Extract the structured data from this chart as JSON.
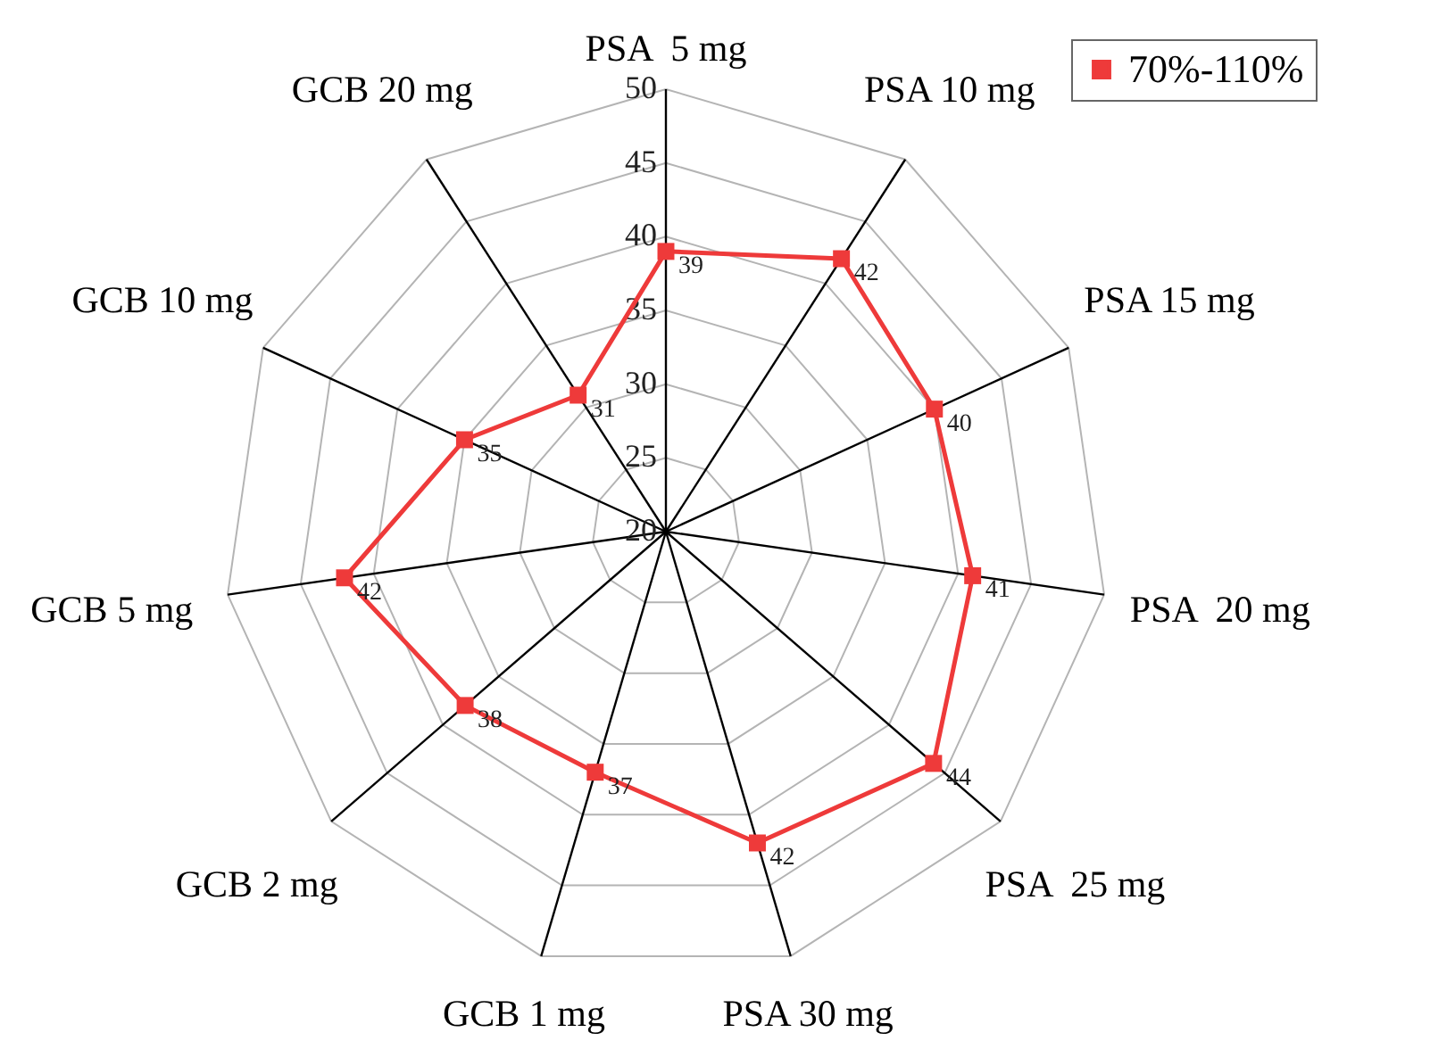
{
  "chart_data": {
    "type": "radar",
    "categories": [
      "PSA  5 mg",
      "PSA 10 mg",
      "PSA 15 mg",
      "PSA  20 mg",
      "PSA  25 mg",
      "PSA 30 mg",
      "GCB 1 mg",
      "GCB 2 mg",
      "GCB 5 mg",
      "GCB 10 mg",
      "GCB 20 mg"
    ],
    "series": [
      {
        "name": "70%-110%",
        "color": "#ee3a3a",
        "values": [
          39,
          42,
          40,
          41,
          44,
          42,
          37,
          38,
          42,
          35,
          31
        ]
      }
    ],
    "ylim": [
      20,
      50
    ],
    "yticks": [
      20,
      25,
      30,
      35,
      40,
      45,
      50
    ],
    "grid": true,
    "legend": "top right",
    "marker": "square",
    "data_labels": true
  }
}
